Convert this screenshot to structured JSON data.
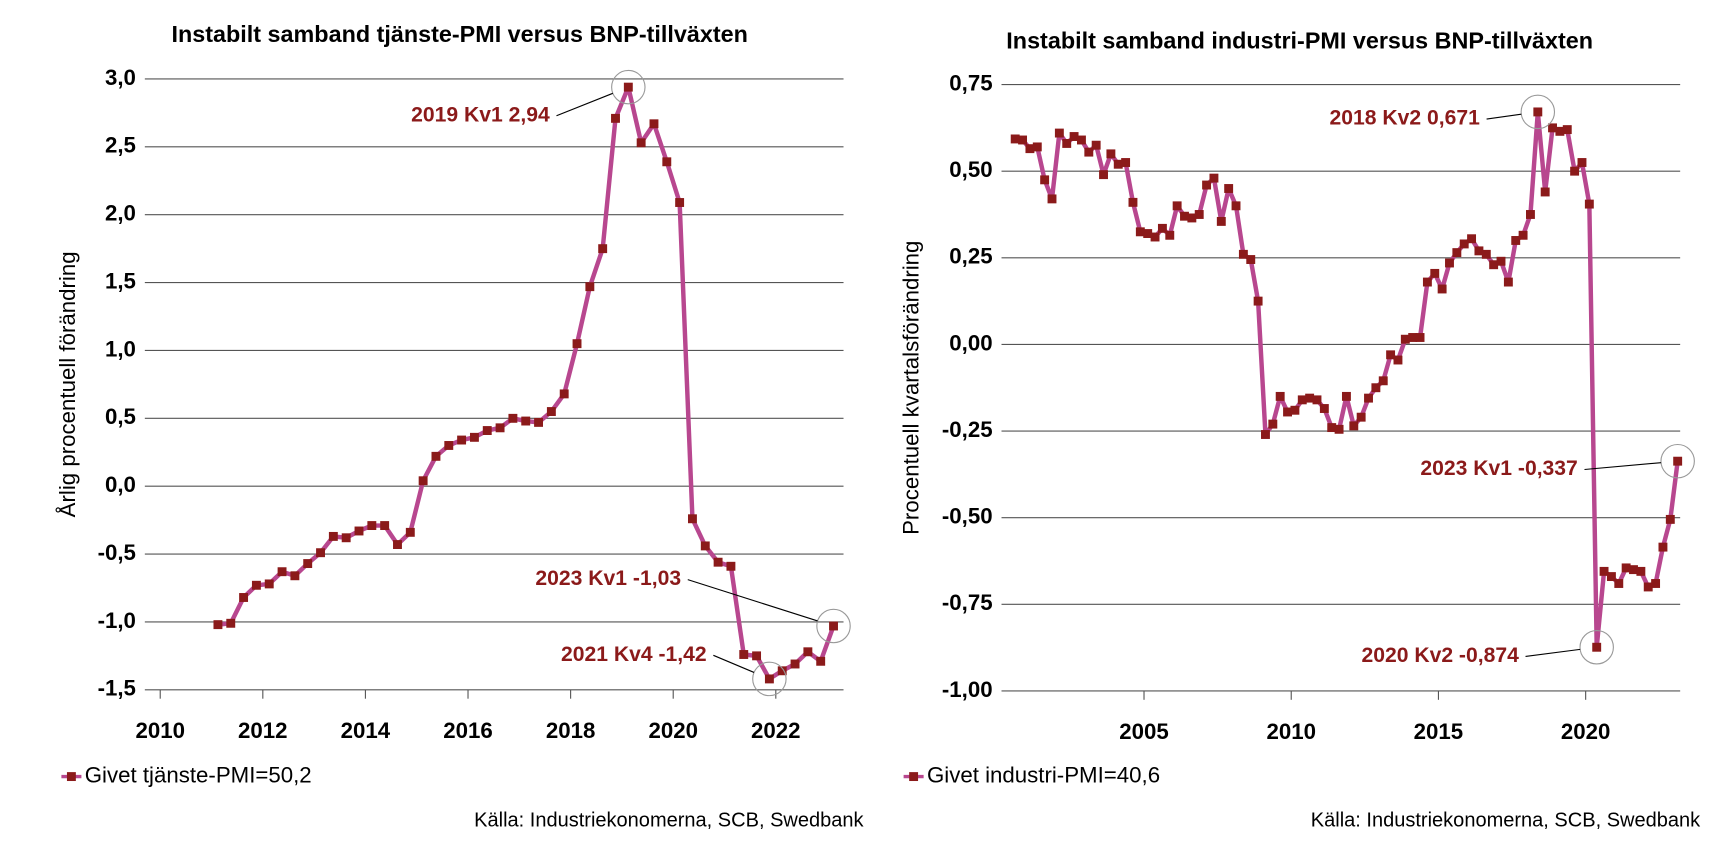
{
  "chart_data": [
    {
      "type": "line",
      "title": "Instabilt samband tjänste-PMI versus BNP-tillväxten",
      "y_label": "Årlig procentuell förändring",
      "source": "Källa: Industriekonomerna, SCB, Swedbank",
      "x": [
        2011.125,
        2011.375,
        2011.625,
        2011.875,
        2012.125,
        2012.375,
        2012.625,
        2012.875,
        2013.125,
        2013.375,
        2013.625,
        2013.875,
        2014.125,
        2014.375,
        2014.625,
        2014.875,
        2015.125,
        2015.375,
        2015.625,
        2015.875,
        2016.125,
        2016.375,
        2016.625,
        2016.875,
        2017.125,
        2017.375,
        2017.625,
        2017.875,
        2018.125,
        2018.375,
        2018.625,
        2018.875,
        2019.125,
        2019.375,
        2019.625,
        2019.875,
        2020.125,
        2020.375,
        2020.625,
        2020.875,
        2021.125,
        2021.375,
        2021.625,
        2021.875,
        2022.125,
        2022.375,
        2022.625,
        2022.875,
        2023.125
      ],
      "series": [
        {
          "name": "Givet tjänste-PMI=50,2",
          "color": "#b8478f",
          "marker_color": "#8b1a1a",
          "values": [
            -1.02,
            -1.01,
            -0.82,
            -0.73,
            -0.72,
            -0.63,
            -0.66,
            -0.57,
            -0.49,
            -0.37,
            -0.38,
            -0.33,
            -0.29,
            -0.29,
            -0.43,
            -0.34,
            0.04,
            0.22,
            0.3,
            0.34,
            0.36,
            0.41,
            0.43,
            0.5,
            0.48,
            0.47,
            0.55,
            0.68,
            1.05,
            1.47,
            1.75,
            2.71,
            2.94,
            2.53,
            2.67,
            2.39,
            2.09,
            -0.24,
            -0.44,
            -0.56,
            -0.59,
            -1.24,
            -1.25,
            -1.42,
            -1.36,
            -1.31,
            -1.22,
            -1.29,
            -1.03
          ]
        }
      ],
      "xlim": [
        2009.7,
        2023.32
      ],
      "xticks": [
        2010,
        2012,
        2014,
        2016,
        2018,
        2020,
        2022
      ],
      "ylim": [
        -1.5,
        3.0
      ],
      "yticks": [
        {
          "value": 3.0,
          "label": "3,0"
        },
        {
          "value": 2.5,
          "label": "2,5"
        },
        {
          "value": 2.0,
          "label": "2,0"
        },
        {
          "value": 1.5,
          "label": "1,5"
        },
        {
          "value": 1.0,
          "label": "1,0"
        },
        {
          "value": 0.5,
          "label": "0,5"
        },
        {
          "value": 0,
          "label": "0,0"
        },
        {
          "value": -0.5,
          "label": "-0,5"
        },
        {
          "value": -1.0,
          "label": "-1,0"
        },
        {
          "value": -1.5,
          "label": "-1,5"
        }
      ],
      "grid": true,
      "legend": "bottom-left",
      "annotations": [
        {
          "text": "2019 Kv1 2,94"
        },
        {
          "text": "2023 Kv1 -1,03"
        },
        {
          "text": "2021 Kv4 -1,42"
        }
      ]
    },
    {
      "type": "line",
      "title": "Instabilt samband industri-PMI versus BNP-tillväxten",
      "y_label": "Procentuell kvartalsförändring",
      "source": "Källa: Industriekonomerna, SCB, Swedbank",
      "x": [
        2000.625,
        2000.875,
        2001.125,
        2001.375,
        2001.625,
        2001.875,
        2002.125,
        2002.375,
        2002.625,
        2002.875,
        2003.125,
        2003.375,
        2003.625,
        2003.875,
        2004.125,
        2004.375,
        2004.625,
        2004.875,
        2005.125,
        2005.375,
        2005.625,
        2005.875,
        2006.125,
        2006.375,
        2006.625,
        2006.875,
        2007.125,
        2007.375,
        2007.625,
        2007.875,
        2008.125,
        2008.375,
        2008.625,
        2008.875,
        2009.125,
        2009.375,
        2009.625,
        2009.875,
        2010.125,
        2010.375,
        2010.625,
        2010.875,
        2011.125,
        2011.375,
        2011.625,
        2011.875,
        2012.125,
        2012.375,
        2012.625,
        2012.875,
        2013.125,
        2013.375,
        2013.625,
        2013.875,
        2014.125,
        2014.375,
        2014.625,
        2014.875,
        2015.125,
        2015.375,
        2015.625,
        2015.875,
        2016.125,
        2016.375,
        2016.625,
        2016.875,
        2017.125,
        2017.375,
        2017.625,
        2017.875,
        2018.125,
        2018.375,
        2018.625,
        2018.875,
        2019.125,
        2019.375,
        2019.625,
        2019.875,
        2020.125,
        2020.375,
        2020.625,
        2020.875,
        2021.125,
        2021.375,
        2021.625,
        2021.875,
        2022.125,
        2022.375,
        2022.625,
        2022.875,
        2023.125
      ],
      "series": [
        {
          "name": "Givet industri-PMI=40,6",
          "color": "#b8478f",
          "marker_color": "#8b1a1a",
          "values": [
            0.593,
            0.59,
            0.565,
            0.57,
            0.475,
            0.42,
            0.61,
            0.58,
            0.6,
            0.59,
            0.555,
            0.575,
            0.49,
            0.55,
            0.52,
            0.525,
            0.41,
            0.325,
            0.32,
            0.31,
            0.335,
            0.315,
            0.4,
            0.37,
            0.365,
            0.375,
            0.46,
            0.48,
            0.355,
            0.45,
            0.4,
            0.26,
            0.245,
            0.125,
            -0.26,
            -0.23,
            -0.15,
            -0.195,
            -0.19,
            -0.16,
            -0.155,
            -0.16,
            -0.185,
            -0.24,
            -0.245,
            -0.15,
            -0.235,
            -0.21,
            -0.155,
            -0.125,
            -0.105,
            -0.03,
            -0.045,
            0.015,
            0.02,
            0.02,
            0.18,
            0.205,
            0.16,
            0.235,
            0.265,
            0.29,
            0.305,
            0.27,
            0.26,
            0.23,
            0.24,
            0.18,
            0.3,
            0.315,
            0.375,
            0.671,
            0.44,
            0.625,
            0.615,
            0.62,
            0.5,
            0.525,
            0.405,
            -0.874,
            -0.655,
            -0.67,
            -0.69,
            -0.645,
            -0.65,
            -0.655,
            -0.7,
            -0.69,
            -0.585,
            -0.505,
            -0.337
          ]
        }
      ],
      "xlim": [
        2000.16,
        2023.21
      ],
      "xticks": [
        2005,
        2010,
        2015,
        2020
      ],
      "ylim": [
        -1.0,
        0.75
      ],
      "yticks": [
        {
          "value": 0.75,
          "label": "0,75"
        },
        {
          "value": 0.5,
          "label": "0,50"
        },
        {
          "value": 0.25,
          "label": "0,25"
        },
        {
          "value": 0,
          "label": "0,00"
        },
        {
          "value": -0.25,
          "label": "-0,25"
        },
        {
          "value": -0.5,
          "label": "-0,50"
        },
        {
          "value": -0.75,
          "label": "-0,75"
        },
        {
          "value": -1.0,
          "label": "-1,00"
        }
      ],
      "grid": true,
      "legend": "bottom-left",
      "annotations": [
        {
          "text": "2018 Kv2 0,671"
        },
        {
          "text": "2023 Kv1 -0,337"
        },
        {
          "text": "2020 Kv2 -0,874"
        }
      ]
    }
  ]
}
